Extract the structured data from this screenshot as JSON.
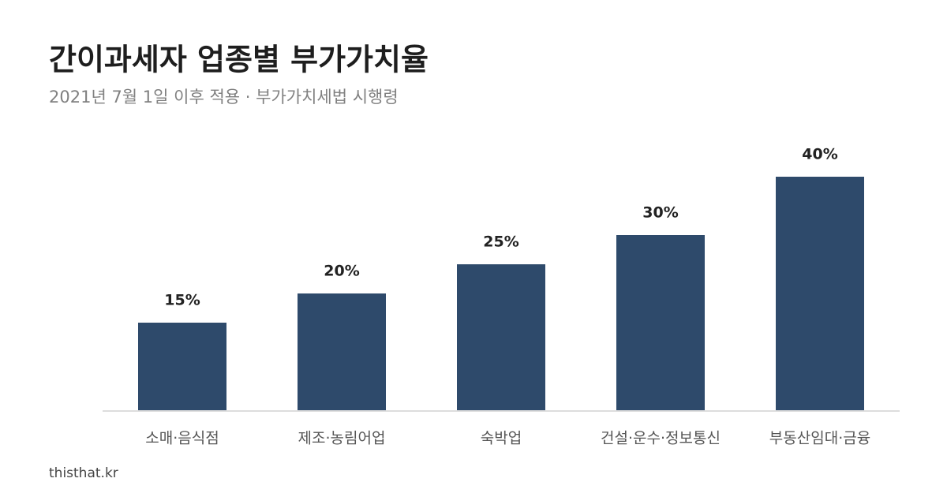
{
  "chart_data": {
    "type": "bar",
    "title": "간이과세자 업종별 부가가치율",
    "subtitle": "2021년 7월 1일 이후 적용 · 부가가치세법 시행령",
    "categories": [
      "소매·음식점",
      "제조·농림어업",
      "숙박업",
      "건설·운수·정보통신",
      "부동산임대·금융"
    ],
    "values": [
      15,
      20,
      25,
      30,
      40
    ],
    "value_labels": [
      "15%",
      "20%",
      "25%",
      "30%",
      "40%"
    ],
    "color": "#2e4a6b",
    "source": "thisthat.kr"
  }
}
